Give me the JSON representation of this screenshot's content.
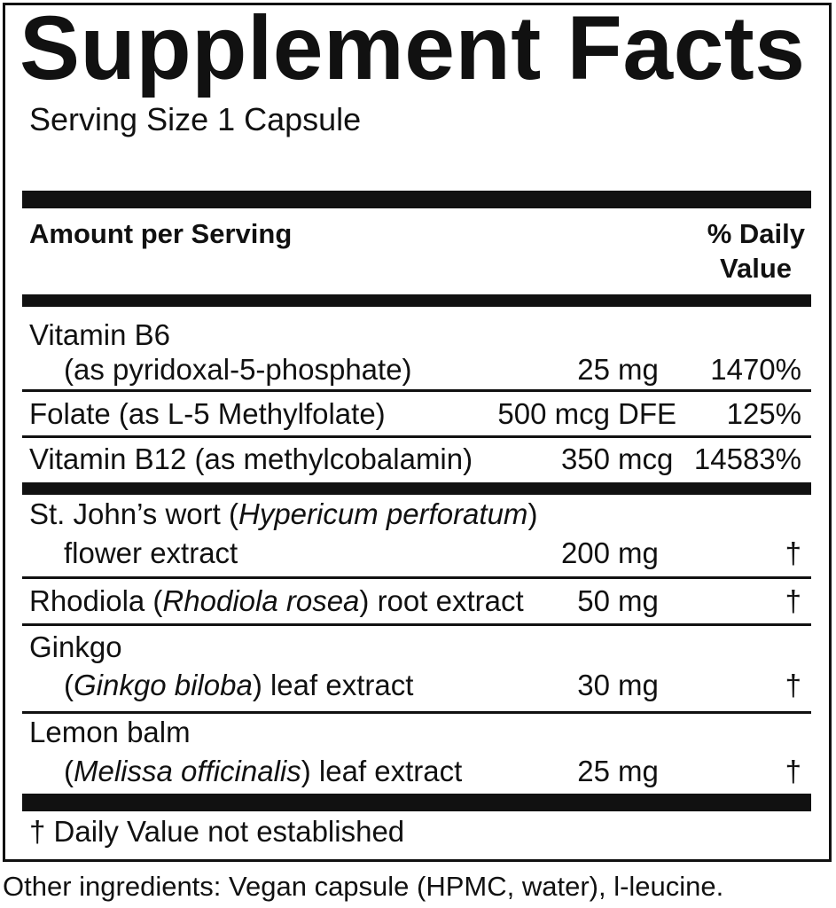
{
  "title": "Supplement Facts",
  "serving_size": "Serving Size 1 Capsule",
  "header": {
    "amount": "Amount per Serving",
    "dv_line1": "% Daily",
    "dv_line2": "Value"
  },
  "rows": [
    {
      "line1": {
        "pre": "Vitamin B6",
        "ital": "",
        "post": ""
      },
      "line2": {
        "pre": "(as pyridoxal-5-phosphate)",
        "ital": "",
        "post": ""
      },
      "amount": "25",
      "unit": "mg",
      "dv": "1470%"
    },
    {
      "line1": {
        "pre": "Folate (as L-5 Methylfolate)",
        "ital": "",
        "post": ""
      },
      "amount": "500 mcg",
      "unit": "DFE",
      "dv": "125%"
    },
    {
      "line1": {
        "pre": "Vitamin B12 (as methylcobalamin)",
        "ital": "",
        "post": ""
      },
      "amount": "350",
      "unit": "mcg",
      "dv": "14583%"
    },
    {
      "line1": {
        "pre": "St. John’s wort (",
        "ital": "Hypericum perforatum",
        "post": ")"
      },
      "line2": {
        "pre": "flower extract",
        "ital": "",
        "post": ""
      },
      "amount": "200",
      "unit": "mg",
      "dv": "†"
    },
    {
      "line1": {
        "pre": "Rhodiola (",
        "ital": "Rhodiola rosea",
        "post": ") root extract"
      },
      "amount": "50",
      "unit": "mg",
      "dv": "†"
    },
    {
      "line1": {
        "pre": "Ginkgo",
        "ital": "",
        "post": ""
      },
      "line2": {
        "pre": "(",
        "ital": "Ginkgo biloba",
        "post": ") leaf extract"
      },
      "amount": "30",
      "unit": "mg",
      "dv": "†"
    },
    {
      "line1": {
        "pre": "Lemon balm",
        "ital": "",
        "post": ""
      },
      "line2": {
        "pre": "(",
        "ital": "Melissa officinalis",
        "post": ") leaf extract"
      },
      "amount": "25",
      "unit": "mg",
      "dv": "†"
    }
  ],
  "footnote": "† Daily Value not established",
  "other_ingredients": "Other ingredients: Vegan capsule (HPMC, water), l-leucine."
}
